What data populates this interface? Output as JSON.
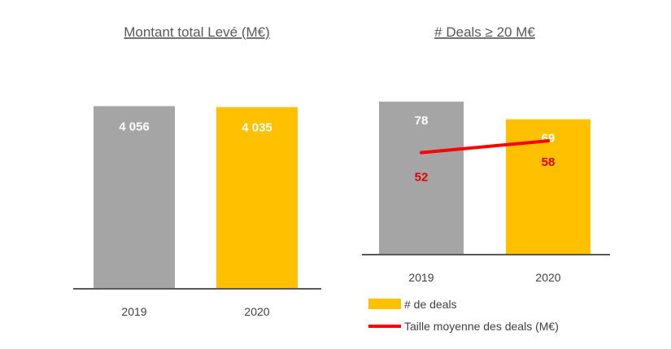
{
  "colors": {
    "gray": "#a5a5a5",
    "gold": "#ffc000",
    "red": "#ff0000",
    "axis": "#595959"
  },
  "chart_data": [
    {
      "type": "bar",
      "title": "Montant total Levé (M€)",
      "categories": [
        "2019",
        "2020"
      ],
      "values": [
        4056,
        4035
      ],
      "value_labels": [
        "4 056",
        "4 035"
      ],
      "ylim": [
        0,
        5600
      ]
    },
    {
      "type": "bar",
      "title": "# Deals ≥ 20 M€",
      "categories": [
        "2019",
        "2020"
      ],
      "series": [
        {
          "name": "# de deals",
          "type": "bar",
          "values": [
            78,
            69
          ],
          "value_labels": [
            "78",
            "69"
          ]
        },
        {
          "name": "Taille moyenne des deals (M€)",
          "type": "line",
          "values": [
            52,
            58
          ],
          "value_labels": [
            "52",
            "58"
          ]
        }
      ],
      "ylim": [
        0,
        102
      ],
      "legend_position": "bottom-right"
    }
  ]
}
